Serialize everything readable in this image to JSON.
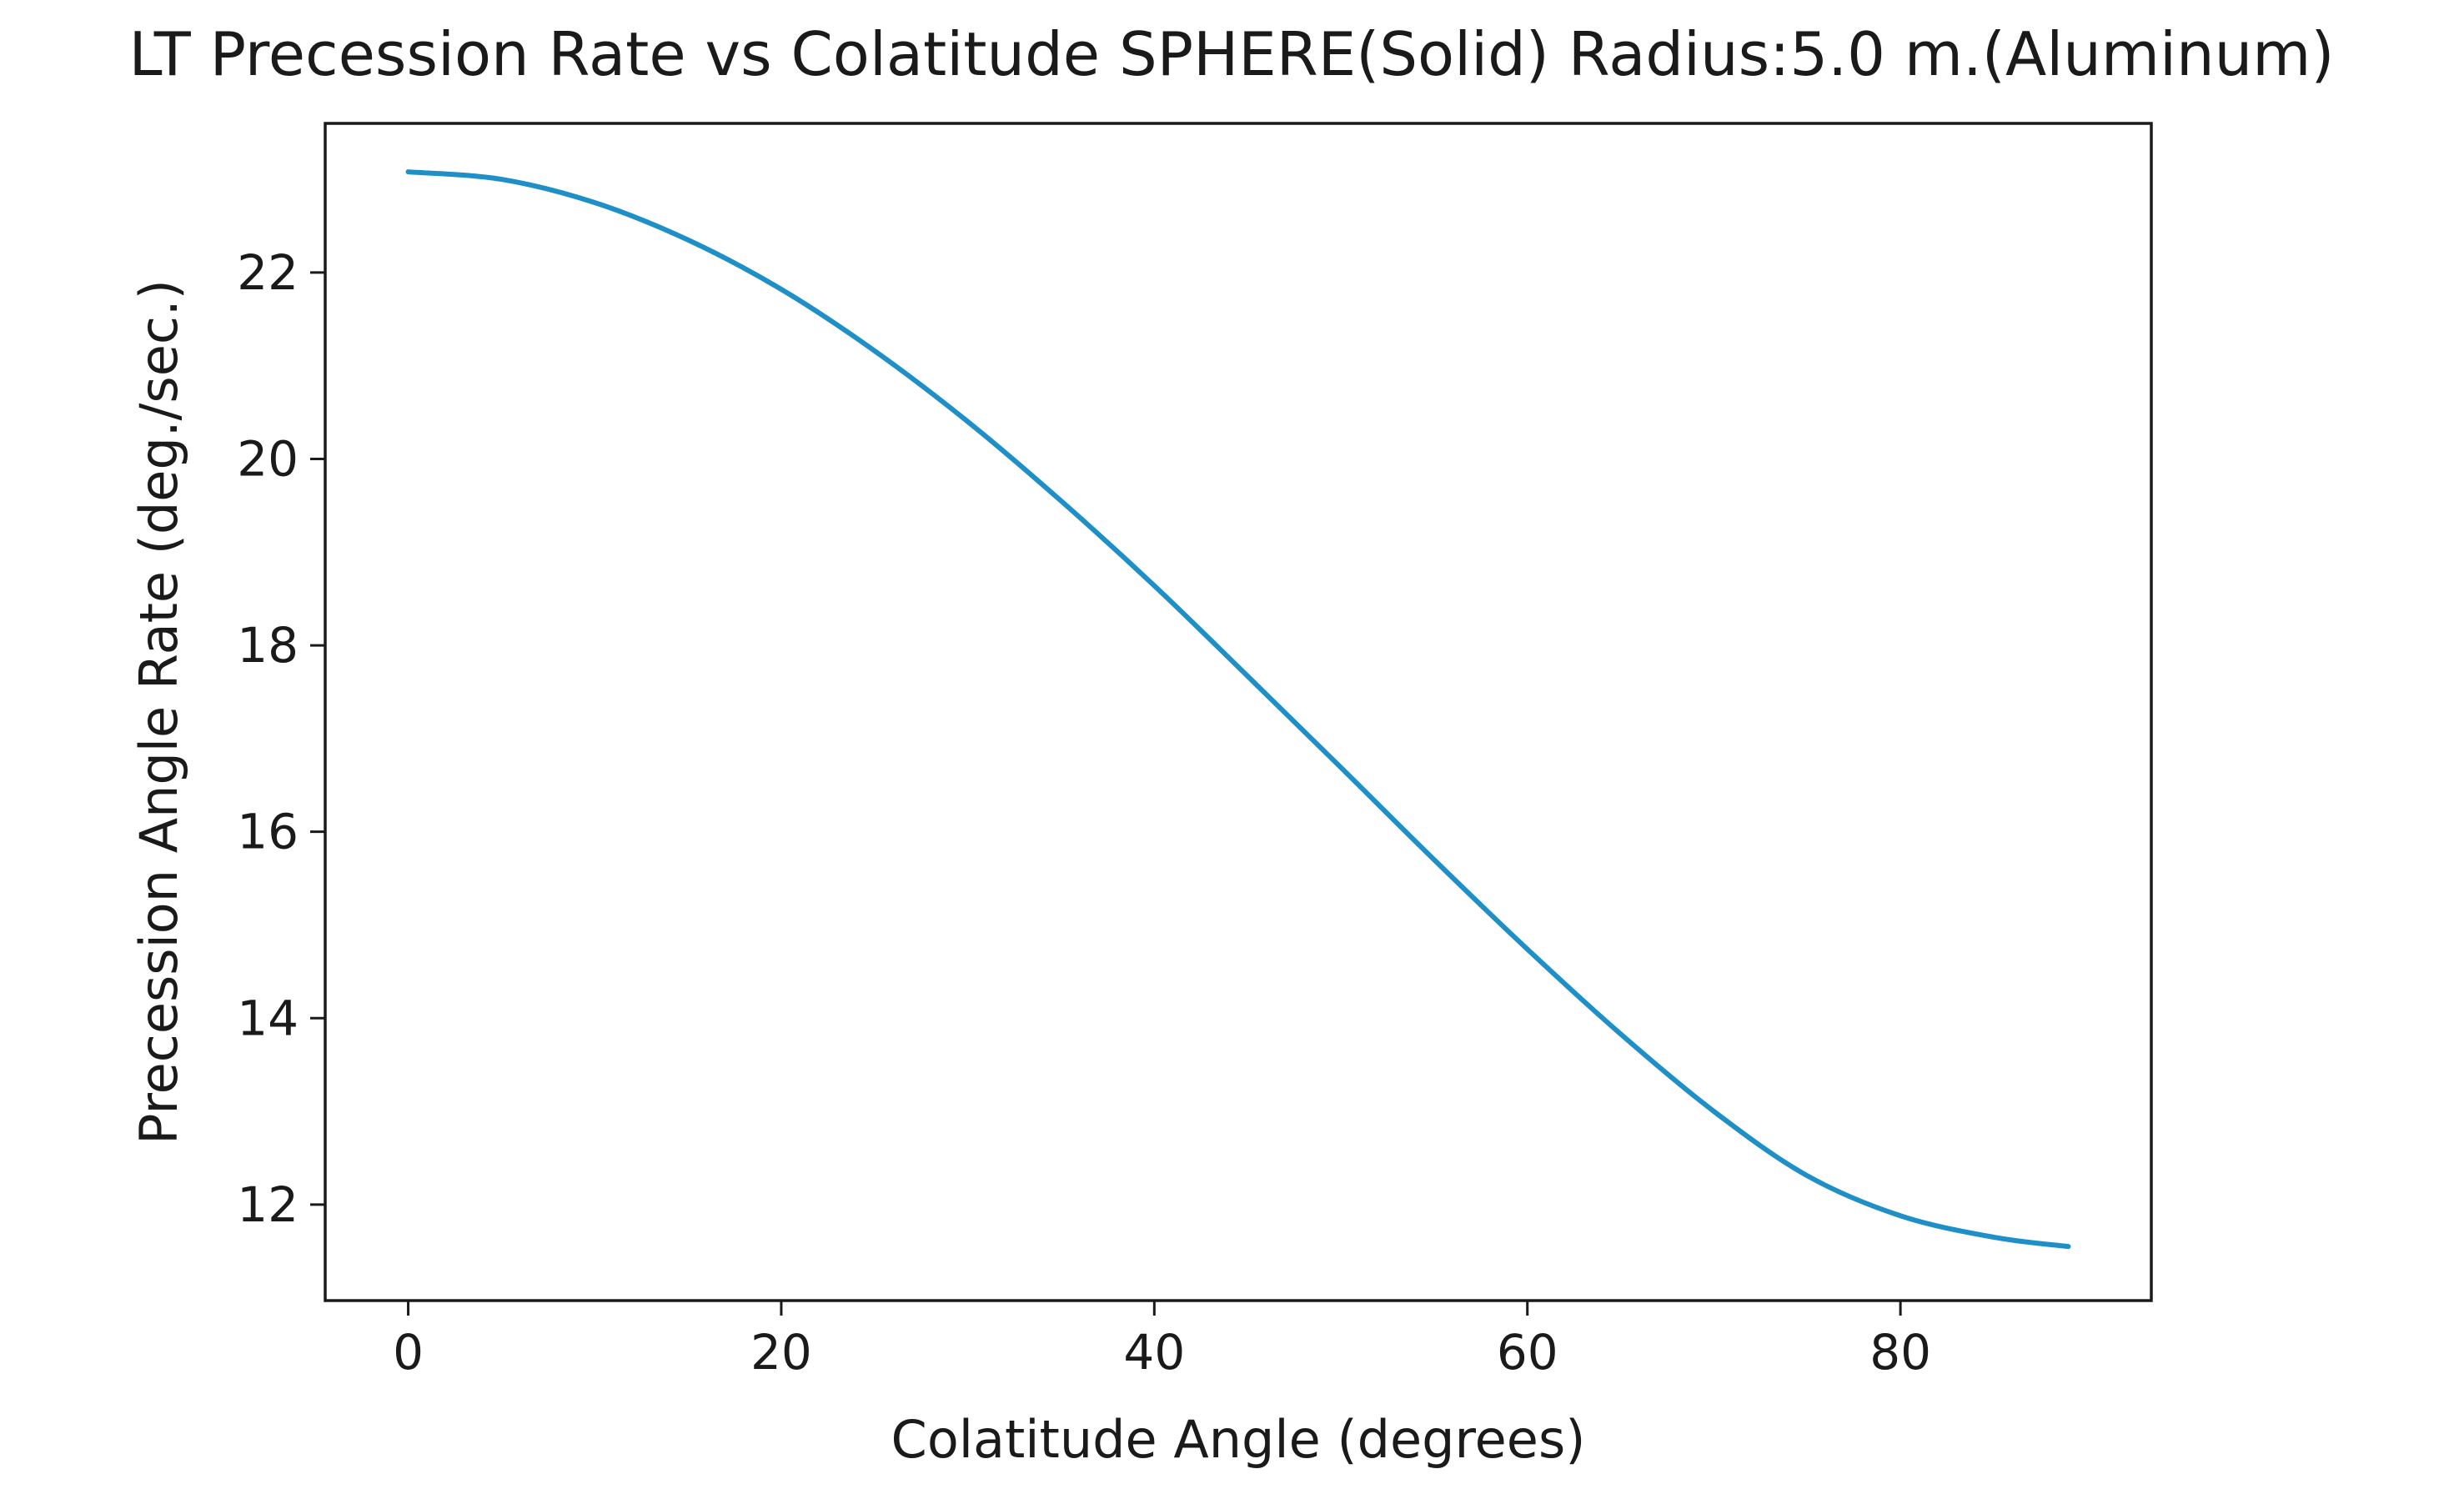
{
  "chart_data": {
    "type": "line",
    "title": "LT Precession Rate vs Colatitude SPHERE(Solid) Radius:5.0 m.(Aluminum)",
    "xlabel": "Colatitude Angle (degrees)",
    "ylabel": "Precession Angle Rate (deg./sec.)",
    "xlim": [
      -4.45,
      93.45
    ],
    "ylim": [
      10.97,
      23.6
    ],
    "xticks": [
      0,
      20,
      40,
      60,
      80
    ],
    "yticks": [
      12,
      14,
      16,
      18,
      20,
      22
    ],
    "grid": false,
    "legend": "none",
    "series": [
      {
        "name": "precession rate",
        "color": "#1f8fc8",
        "x": [
          0,
          5,
          10,
          15,
          20,
          25,
          30,
          35,
          40,
          45,
          50,
          55,
          60,
          65,
          70,
          75,
          80,
          85,
          89
        ],
        "y": [
          23.08,
          23.0,
          22.75,
          22.35,
          21.82,
          21.16,
          20.4,
          19.55,
          18.64,
          17.67,
          16.69,
          15.7,
          14.74,
          13.83,
          13.0,
          12.31,
          11.88,
          11.65,
          11.55
        ]
      }
    ]
  }
}
